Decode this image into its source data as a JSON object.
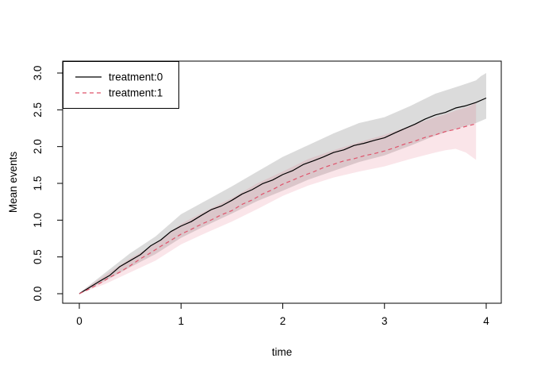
{
  "figure": {
    "background": "#ffffff"
  },
  "chart_data": {
    "type": "line",
    "title": "",
    "xlabel": "time",
    "ylabel": "Mean events",
    "xlim": [
      0,
      4
    ],
    "ylim": [
      0,
      3
    ],
    "grid": false,
    "x_ticks": [
      0,
      1,
      2,
      3,
      4
    ],
    "x_tick_labels": [
      "0",
      "1",
      "2",
      "3",
      "4"
    ],
    "y_ticks": [
      0.0,
      0.5,
      1.0,
      1.5,
      2.0,
      2.5,
      3.0
    ],
    "y_tick_labels": [
      "0.0",
      "0.5",
      "1.0",
      "1.5",
      "2.0",
      "2.5",
      "3.0"
    ],
    "legend": {
      "position": "topleft",
      "entries": [
        {
          "label": "treatment:0",
          "color": "#000000",
          "dash": "solid"
        },
        {
          "label": "treatment:1",
          "color": "#df536b",
          "dash": "dashed"
        }
      ]
    },
    "series": [
      {
        "name": "treatment:0",
        "color": "#000000",
        "style": "solid",
        "x": [
          0.0,
          0.1,
          0.2,
          0.3,
          0.4,
          0.5,
          0.6,
          0.7,
          0.8,
          0.9,
          1.0,
          1.1,
          1.2,
          1.3,
          1.4,
          1.5,
          1.6,
          1.7,
          1.8,
          1.9,
          2.0,
          2.1,
          2.2,
          2.3,
          2.4,
          2.5,
          2.6,
          2.7,
          2.8,
          2.9,
          3.0,
          3.1,
          3.2,
          3.3,
          3.4,
          3.5,
          3.6,
          3.7,
          3.8,
          3.9,
          4.0
        ],
        "y": [
          0.0,
          0.085,
          0.17,
          0.25,
          0.37,
          0.45,
          0.53,
          0.65,
          0.73,
          0.845,
          0.92,
          0.98,
          1.065,
          1.145,
          1.195,
          1.27,
          1.355,
          1.415,
          1.495,
          1.545,
          1.62,
          1.675,
          1.755,
          1.805,
          1.86,
          1.92,
          1.955,
          2.015,
          2.045,
          2.085,
          2.12,
          2.185,
          2.245,
          2.305,
          2.375,
          2.43,
          2.465,
          2.525,
          2.555,
          2.6,
          2.66
        ],
        "band": {
          "fill": "rgba(0,0,0,0.14)",
          "x": [
            0.0,
            0.25,
            0.5,
            0.75,
            1.0,
            1.25,
            1.5,
            1.75,
            2.0,
            2.25,
            2.5,
            2.75,
            3.0,
            3.25,
            3.5,
            3.75,
            3.9,
            3.95,
            4.0
          ],
          "lo": [
            0.0,
            0.17,
            0.36,
            0.54,
            0.76,
            0.93,
            1.09,
            1.26,
            1.4,
            1.55,
            1.67,
            1.79,
            1.88,
            2.01,
            2.15,
            2.26,
            2.32,
            2.35,
            2.38
          ],
          "hi": [
            0.01,
            0.28,
            0.55,
            0.78,
            1.08,
            1.27,
            1.46,
            1.66,
            1.86,
            2.02,
            2.18,
            2.32,
            2.4,
            2.55,
            2.72,
            2.83,
            2.9,
            2.96,
            3.0
          ]
        }
      },
      {
        "name": "treatment:1",
        "color": "#df536b",
        "style": "dashed",
        "x": [
          0.0,
          0.1,
          0.2,
          0.3,
          0.4,
          0.5,
          0.6,
          0.7,
          0.8,
          0.9,
          1.0,
          1.1,
          1.2,
          1.3,
          1.4,
          1.5,
          1.6,
          1.7,
          1.8,
          1.9,
          2.0,
          2.1,
          2.2,
          2.3,
          2.4,
          2.5,
          2.6,
          2.7,
          2.8,
          2.9,
          3.0,
          3.1,
          3.2,
          3.3,
          3.4,
          3.5,
          3.6,
          3.7,
          3.8,
          3.9
        ],
        "y": [
          0.0,
          0.065,
          0.14,
          0.225,
          0.295,
          0.38,
          0.475,
          0.555,
          0.645,
          0.725,
          0.81,
          0.875,
          0.945,
          1.005,
          1.075,
          1.13,
          1.215,
          1.275,
          1.355,
          1.415,
          1.49,
          1.545,
          1.605,
          1.655,
          1.715,
          1.76,
          1.805,
          1.835,
          1.875,
          1.905,
          1.94,
          1.985,
          2.035,
          2.075,
          2.125,
          2.16,
          2.205,
          2.235,
          2.275,
          2.31
        ],
        "band": {
          "fill": "rgba(223,83,107,0.15)",
          "x": [
            0.0,
            0.25,
            0.5,
            0.75,
            1.0,
            1.25,
            1.5,
            1.75,
            2.0,
            2.25,
            2.5,
            2.75,
            3.0,
            3.25,
            3.5,
            3.6,
            3.7,
            3.8,
            3.85,
            3.9
          ],
          "lo": [
            0.0,
            0.13,
            0.29,
            0.45,
            0.67,
            0.83,
            0.98,
            1.15,
            1.33,
            1.47,
            1.58,
            1.66,
            1.73,
            1.83,
            1.92,
            1.95,
            1.97,
            1.92,
            1.87,
            1.82
          ],
          "hi": [
            0.01,
            0.25,
            0.48,
            0.68,
            0.95,
            1.13,
            1.3,
            1.5,
            1.66,
            1.83,
            1.95,
            2.06,
            2.16,
            2.28,
            2.4,
            2.44,
            2.49,
            2.53,
            2.56,
            2.6
          ]
        }
      }
    ]
  }
}
